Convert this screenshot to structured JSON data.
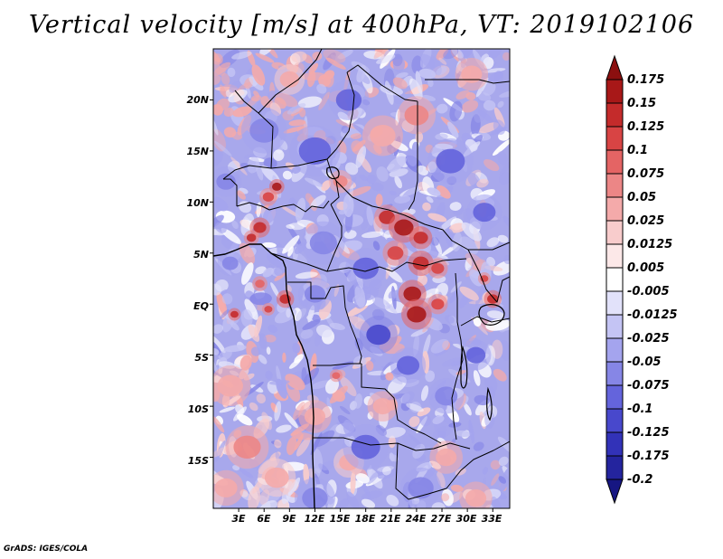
{
  "title": "Vertical velocity [m/s] at 400hPa, VT: 2019102106",
  "credit": "GrADS: IGES/COLA",
  "map": {
    "lat_labels": [
      "20N",
      "15N",
      "10N",
      "5N",
      "EQ",
      "5S",
      "10S",
      "15S"
    ],
    "lon_labels": [
      "3E",
      "6E",
      "9E",
      "12E",
      "15E",
      "18E",
      "21E",
      "24E",
      "27E",
      "30E",
      "33E"
    ]
  },
  "colorbar": {
    "levels": [
      "0.175",
      "0.15",
      "0.125",
      "0.1",
      "0.075",
      "0.05",
      "0.025",
      "0.0125",
      "0.005",
      "-0.005",
      "-0.0125",
      "-0.025",
      "-0.05",
      "-0.075",
      "-0.1",
      "-0.125",
      "-0.175",
      "-0.2"
    ],
    "colors": [
      "#8b0f0f",
      "#a81818",
      "#c42b2b",
      "#d84444",
      "#e46464",
      "#ec8686",
      "#f4aaaa",
      "#f8cccc",
      "#fce8e8",
      "#ffffff",
      "#e2e2fa",
      "#c4c4f4",
      "#a4a4ee",
      "#8686e6",
      "#6464dc",
      "#4848cc",
      "#3232b8",
      "#24249e",
      "#161682"
    ]
  },
  "patches": [
    {
      "lon": 7.5,
      "lat": 11.5,
      "w": 0.6,
      "v": 0.16
    },
    {
      "lon": 6.5,
      "lat": 10.5,
      "w": 0.7,
      "v": 0.11
    },
    {
      "lon": 5.5,
      "lat": 7.5,
      "w": 0.8,
      "v": 0.15
    },
    {
      "lon": 4.5,
      "lat": 6.5,
      "w": 0.6,
      "v": 0.13
    },
    {
      "lon": 5.5,
      "lat": 2.0,
      "w": 0.6,
      "v": 0.1
    },
    {
      "lon": 8.5,
      "lat": 0.5,
      "w": 0.7,
      "v": 0.14
    },
    {
      "lon": 6.5,
      "lat": -0.5,
      "w": 0.5,
      "v": 0.12
    },
    {
      "lon": 2.5,
      "lat": -1.0,
      "w": 0.5,
      "v": 0.15
    },
    {
      "lon": 20.5,
      "lat": 8.5,
      "w": 1.0,
      "v": 0.13
    },
    {
      "lon": 22.5,
      "lat": 7.5,
      "w": 1.2,
      "v": 0.17
    },
    {
      "lon": 24.5,
      "lat": 6.5,
      "w": 0.9,
      "v": 0.15
    },
    {
      "lon": 21.5,
      "lat": 5.0,
      "w": 1.0,
      "v": 0.12
    },
    {
      "lon": 24.5,
      "lat": 4.0,
      "w": 1.0,
      "v": 0.14
    },
    {
      "lon": 26.5,
      "lat": 3.5,
      "w": 0.8,
      "v": 0.11
    },
    {
      "lon": 23.5,
      "lat": 1.0,
      "w": 1.1,
      "v": 0.16
    },
    {
      "lon": 24.0,
      "lat": -1.0,
      "w": 1.2,
      "v": 0.17
    },
    {
      "lon": 26.5,
      "lat": 0.0,
      "w": 0.8,
      "v": 0.12
    },
    {
      "lon": 33.0,
      "lat": 0.5,
      "w": 0.7,
      "v": 0.15
    },
    {
      "lon": 32.0,
      "lat": 2.5,
      "w": 0.5,
      "v": 0.12
    },
    {
      "lon": 15.0,
      "lat": 12.0,
      "w": 0.9,
      "v": 0.06
    },
    {
      "lon": 20.0,
      "lat": 16.5,
      "w": 1.6,
      "v": 0.05
    },
    {
      "lon": 24.0,
      "lat": 18.5,
      "w": 1.5,
      "v": 0.06
    },
    {
      "lon": 30.5,
      "lat": 22.5,
      "w": 1.3,
      "v": 0.05
    },
    {
      "lon": 9.0,
      "lat": 22.0,
      "w": 1.2,
      "v": 0.04
    },
    {
      "lon": 2.0,
      "lat": -8.0,
      "w": 1.6,
      "v": 0.05
    },
    {
      "lon": 4.0,
      "lat": -14.0,
      "w": 1.7,
      "v": 0.06
    },
    {
      "lon": 1.5,
      "lat": -18.0,
      "w": 1.4,
      "v": 0.05
    },
    {
      "lon": 7.5,
      "lat": -17.0,
      "w": 1.5,
      "v": 0.04
    },
    {
      "lon": 12.0,
      "lat": -11.0,
      "w": 1.3,
      "v": 0.05
    },
    {
      "lon": 16.0,
      "lat": -15.5,
      "w": 1.2,
      "v": 0.04
    },
    {
      "lon": 14.5,
      "lat": -7.0,
      "w": 0.5,
      "v": 0.1
    },
    {
      "lon": 20.0,
      "lat": -10.0,
      "w": 1.2,
      "v": 0.05
    },
    {
      "lon": 27.5,
      "lat": -15.0,
      "w": 1.3,
      "v": 0.05
    },
    {
      "lon": 31.0,
      "lat": -19.0,
      "w": 1.3,
      "v": 0.05
    },
    {
      "lon": 16.0,
      "lat": 20.0,
      "w": 1.6,
      "v": -0.09
    },
    {
      "lon": 12.0,
      "lat": 15.0,
      "w": 2.0,
      "v": -0.08
    },
    {
      "lon": 6.0,
      "lat": 17.0,
      "w": 1.8,
      "v": -0.07
    },
    {
      "lon": 28.0,
      "lat": 14.0,
      "w": 1.8,
      "v": -0.09
    },
    {
      "lon": 32.0,
      "lat": 9.0,
      "w": 1.4,
      "v": -0.08
    },
    {
      "lon": 13.0,
      "lat": 6.0,
      "w": 1.7,
      "v": -0.07
    },
    {
      "lon": 18.0,
      "lat": 3.5,
      "w": 1.6,
      "v": -0.09
    },
    {
      "lon": 12.0,
      "lat": 1.0,
      "w": 1.3,
      "v": -0.06
    },
    {
      "lon": 19.5,
      "lat": -3.0,
      "w": 1.5,
      "v": -0.1
    },
    {
      "lon": 23.0,
      "lat": -6.0,
      "w": 1.4,
      "v": -0.08
    },
    {
      "lon": 27.5,
      "lat": -9.0,
      "w": 1.4,
      "v": -0.07
    },
    {
      "lon": 31.0,
      "lat": -5.0,
      "w": 1.2,
      "v": -0.09
    },
    {
      "lon": 18.0,
      "lat": -14.0,
      "w": 1.8,
      "v": -0.08
    },
    {
      "lon": 24.5,
      "lat": -18.0,
      "w": 1.6,
      "v": -0.07
    },
    {
      "lon": 12.0,
      "lat": -19.0,
      "w": 1.6,
      "v": -0.06
    },
    {
      "lon": 1.5,
      "lat": 12.0,
      "w": 1.2,
      "v": -0.06
    },
    {
      "lon": 2.0,
      "lat": 4.0,
      "w": 1.0,
      "v": -0.05
    }
  ]
}
